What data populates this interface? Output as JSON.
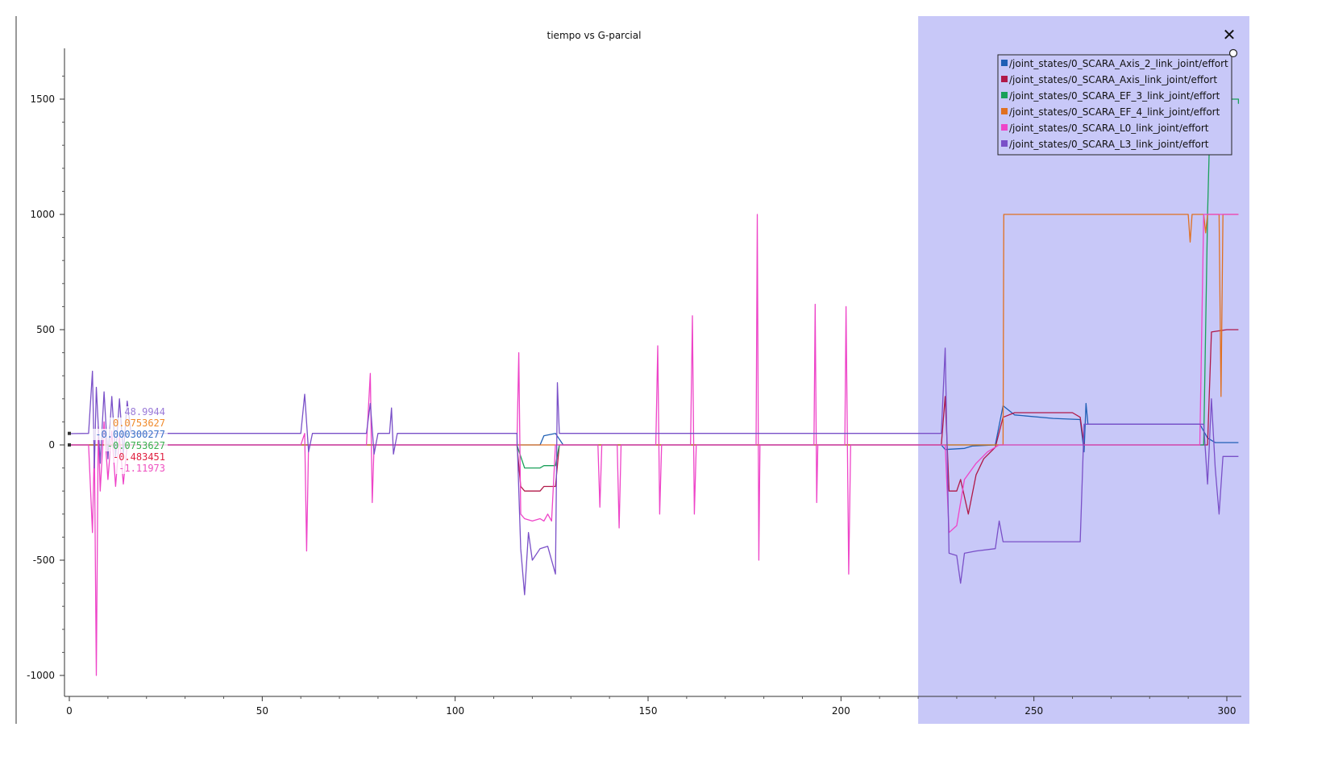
{
  "chart_data": {
    "type": "line",
    "title": "tiempo vs G-parcial",
    "xlabel": "",
    "ylabel": "",
    "xlim": [
      0,
      303
    ],
    "ylim": [
      -1050,
      1700
    ],
    "x_ticks": [
      0,
      50,
      100,
      150,
      200,
      250,
      300
    ],
    "y_ticks": [
      -1000,
      -500,
      0,
      500,
      1000,
      1500
    ],
    "selection_range": [
      220,
      303
    ],
    "legend_placement": "top-right",
    "series": [
      {
        "name": "/joint_states/0_SCARA_Axis_2_link_joint/effort",
        "color": "#1f5fb5",
        "points": [
          [
            0,
            0
          ],
          [
            60,
            0
          ],
          [
            116,
            0
          ],
          [
            122,
            0
          ],
          [
            123,
            40
          ],
          [
            126,
            50
          ],
          [
            128,
            0
          ],
          [
            226,
            0
          ],
          [
            227,
            -20
          ],
          [
            232,
            -15
          ],
          [
            234,
            -5
          ],
          [
            240,
            0
          ],
          [
            242,
            170
          ],
          [
            245,
            130
          ],
          [
            255,
            115
          ],
          [
            262,
            110
          ],
          [
            263,
            -30
          ],
          [
            263.5,
            180
          ],
          [
            264,
            90
          ],
          [
            280,
            90
          ],
          [
            293,
            90
          ],
          [
            295,
            30
          ],
          [
            297,
            10
          ],
          [
            303,
            10
          ]
        ]
      },
      {
        "name": "/joint_states/0_SCARA_Axis_link_joint/effort",
        "color": "#b01848",
        "points": [
          [
            0,
            0
          ],
          [
            60,
            0
          ],
          [
            116,
            0
          ],
          [
            117,
            -180
          ],
          [
            118,
            -200
          ],
          [
            122,
            -200
          ],
          [
            123,
            -180
          ],
          [
            126,
            -180
          ],
          [
            127,
            0
          ],
          [
            226,
            0
          ],
          [
            227,
            210
          ],
          [
            228,
            -200
          ],
          [
            230,
            -200
          ],
          [
            231,
            -150
          ],
          [
            233,
            -300
          ],
          [
            235,
            -130
          ],
          [
            237,
            -60
          ],
          [
            240,
            -10
          ],
          [
            242,
            120
          ],
          [
            245,
            140
          ],
          [
            260,
            140
          ],
          [
            262,
            120
          ],
          [
            263,
            0
          ],
          [
            293,
            0
          ],
          [
            295,
            0
          ],
          [
            296,
            490
          ],
          [
            300,
            500
          ],
          [
            303,
            500
          ]
        ]
      },
      {
        "name": "/joint_states/0_SCARA_EF_3_link_joint/effort",
        "color": "#1aa05a",
        "points": [
          [
            0,
            0
          ],
          [
            116,
            0
          ],
          [
            117,
            -50
          ],
          [
            118,
            -100
          ],
          [
            122,
            -100
          ],
          [
            123,
            -90
          ],
          [
            126,
            -90
          ],
          [
            127,
            0
          ],
          [
            240,
            0
          ],
          [
            242,
            0
          ],
          [
            293,
            0
          ],
          [
            294,
            0
          ],
          [
            295,
            1000
          ],
          [
            296,
            1650
          ],
          [
            297,
            1500
          ],
          [
            298,
            1500
          ],
          [
            298.5,
            1380
          ],
          [
            299,
            1500
          ],
          [
            303,
            1500
          ],
          [
            303,
            1480
          ]
        ]
      },
      {
        "name": "/joint_states/0_SCARA_EF_4_link_joint/effort",
        "color": "#e07020",
        "points": [
          [
            0,
            0
          ],
          [
            242,
            0
          ],
          [
            242.2,
            1000
          ],
          [
            290,
            1000
          ],
          [
            290.5,
            880
          ],
          [
            291,
            1000
          ],
          [
            294,
            1000
          ],
          [
            294.5,
            920
          ],
          [
            295,
            1000
          ],
          [
            298,
            1000
          ],
          [
            298.5,
            210
          ],
          [
            299,
            1000
          ],
          [
            303,
            1000
          ]
        ]
      },
      {
        "name": "/joint_states/0_SCARA_L0_link_joint/effort",
        "color": "#ee44c8",
        "points": [
          [
            0,
            0
          ],
          [
            5,
            0
          ],
          [
            6,
            -380
          ],
          [
            6.5,
            0
          ],
          [
            7,
            -1000
          ],
          [
            7.5,
            80
          ],
          [
            8,
            -200
          ],
          [
            9,
            100
          ],
          [
            10,
            -150
          ],
          [
            11,
            60
          ],
          [
            12,
            -180
          ],
          [
            13,
            40
          ],
          [
            14,
            -170
          ],
          [
            15,
            0
          ],
          [
            60,
            0
          ],
          [
            61,
            50
          ],
          [
            61.5,
            -460
          ],
          [
            62,
            0
          ],
          [
            77,
            0
          ],
          [
            78,
            310
          ],
          [
            78.5,
            -250
          ],
          [
            79,
            0
          ],
          [
            116,
            0
          ],
          [
            116.5,
            400
          ],
          [
            117,
            -300
          ],
          [
            118,
            -320
          ],
          [
            120,
            -330
          ],
          [
            122,
            -320
          ],
          [
            123,
            -330
          ],
          [
            124,
            -300
          ],
          [
            125,
            -330
          ],
          [
            126,
            0
          ],
          [
            137,
            0
          ],
          [
            137.5,
            -270
          ],
          [
            138,
            0
          ],
          [
            142,
            0
          ],
          [
            142.5,
            -360
          ],
          [
            143,
            0
          ],
          [
            152,
            0
          ],
          [
            152.5,
            430
          ],
          [
            153,
            -300
          ],
          [
            153.5,
            0
          ],
          [
            161,
            0
          ],
          [
            161.5,
            560
          ],
          [
            162,
            -300
          ],
          [
            162.5,
            0
          ],
          [
            178,
            0
          ],
          [
            178.3,
            1000
          ],
          [
            178.7,
            -500
          ],
          [
            179,
            0
          ],
          [
            193,
            0
          ],
          [
            193.3,
            610
          ],
          [
            193.7,
            -250
          ],
          [
            194,
            0
          ],
          [
            201,
            0
          ],
          [
            201.3,
            600
          ],
          [
            202,
            -560
          ],
          [
            202.5,
            0
          ],
          [
            226,
            0
          ],
          [
            227,
            0
          ],
          [
            228,
            -380
          ],
          [
            230,
            -350
          ],
          [
            232,
            -150
          ],
          [
            235,
            -80
          ],
          [
            238,
            -30
          ],
          [
            241,
            0
          ],
          [
            242,
            0
          ],
          [
            263,
            0
          ],
          [
            293,
            0
          ],
          [
            294,
            1000
          ],
          [
            303,
            1000
          ]
        ]
      },
      {
        "name": "/joint_states/0_SCARA_L3_link_joint/effort",
        "color": "#7a50c8",
        "points": [
          [
            0,
            48.9944
          ],
          [
            5,
            50
          ],
          [
            6,
            320
          ],
          [
            6.5,
            -100
          ],
          [
            7,
            250
          ],
          [
            8,
            -80
          ],
          [
            9,
            230
          ],
          [
            10,
            -60
          ],
          [
            11,
            210
          ],
          [
            12,
            -50
          ],
          [
            13,
            200
          ],
          [
            14,
            -40
          ],
          [
            15,
            190
          ],
          [
            16,
            50
          ],
          [
            60,
            50
          ],
          [
            61,
            220
          ],
          [
            62,
            -30
          ],
          [
            63,
            50
          ],
          [
            77,
            50
          ],
          [
            78,
            180
          ],
          [
            79,
            -40
          ],
          [
            80,
            50
          ],
          [
            83,
            50
          ],
          [
            83.5,
            160
          ],
          [
            84,
            -40
          ],
          [
            85,
            50
          ],
          [
            116,
            50
          ],
          [
            117,
            -450
          ],
          [
            118,
            -650
          ],
          [
            119,
            -380
          ],
          [
            120,
            -500
          ],
          [
            122,
            -450
          ],
          [
            124,
            -440
          ],
          [
            126,
            -560
          ],
          [
            126.5,
            270
          ],
          [
            127,
            50
          ],
          [
            226,
            50
          ],
          [
            227,
            420
          ],
          [
            228,
            -470
          ],
          [
            230,
            -480
          ],
          [
            231,
            -600
          ],
          [
            232,
            -470
          ],
          [
            235,
            -460
          ],
          [
            240,
            -450
          ],
          [
            241,
            -330
          ],
          [
            242,
            -420
          ],
          [
            262,
            -420
          ],
          [
            263,
            90
          ],
          [
            293,
            90
          ],
          [
            294,
            90
          ],
          [
            295,
            -170
          ],
          [
            296,
            200
          ],
          [
            297,
            -100
          ],
          [
            298,
            -300
          ],
          [
            299,
            -50
          ],
          [
            303,
            -50
          ]
        ]
      }
    ],
    "cursor_values": [
      {
        "text": "48.9944",
        "color": "#9a7ad8"
      },
      {
        "text": "0.0753627",
        "color": "#f08a2a"
      },
      {
        "text": "-0.000300277",
        "color": "#3a70c8"
      },
      {
        "text": "-0.0753627",
        "color": "#3cb050"
      },
      {
        "text": "-0.483451",
        "color": "#e02040"
      },
      {
        "text": "-1.11973",
        "color": "#ee50c0"
      }
    ]
  },
  "ui": {
    "close_glyph": "✕",
    "selection_color": "#c8c8f8"
  }
}
